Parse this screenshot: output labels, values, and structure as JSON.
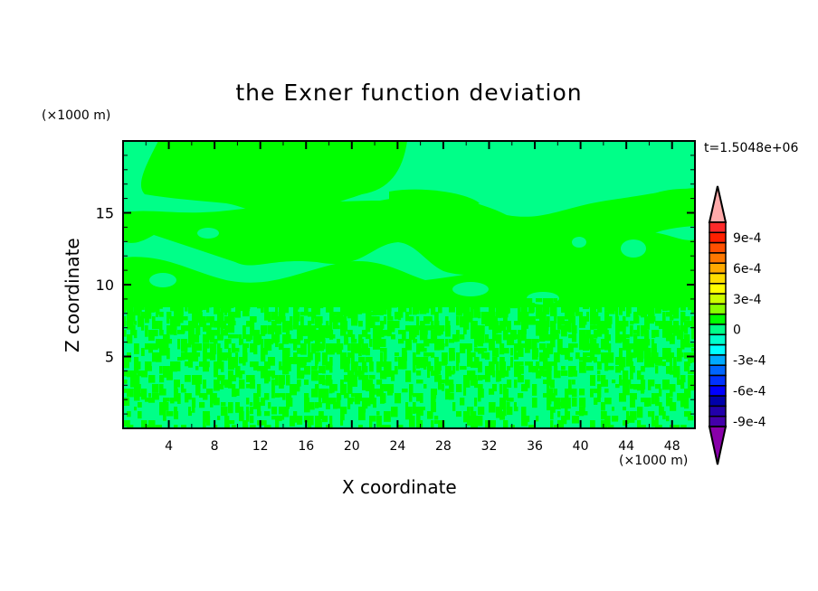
{
  "chart_data": {
    "type": "heatmap",
    "title": "the Exner function deviation",
    "xlabel": "X coordinate",
    "ylabel": "Z coordinate",
    "x_unit": "(×1000 m)",
    "y_unit": "(×1000 m)",
    "annotation": "t=1.5048e+06",
    "xlim": [
      0,
      50
    ],
    "ylim": [
      0,
      20
    ],
    "x_ticks": [
      4,
      8,
      12,
      16,
      20,
      24,
      28,
      32,
      36,
      40,
      44,
      48
    ],
    "y_ticks": [
      5,
      10,
      15
    ],
    "colorbar": {
      "tick_labels": [
        "9e-4",
        "6e-4",
        "3e-4",
        "0",
        "-3e-4",
        "-6e-4",
        "-9e-4"
      ],
      "tick_values": [
        0.0009,
        0.0006,
        0.0003,
        0,
        -0.0003,
        -0.0006,
        -0.0009
      ],
      "over_color": "#ffaaaa",
      "under_color": "#8800aa",
      "colors_top_to_bottom": [
        "#ff2a2a",
        "#ff2000",
        "#ff5000",
        "#ff7800",
        "#ffaa00",
        "#ffdd00",
        "#ffff00",
        "#ccff00",
        "#88ff00",
        "#00ff00",
        "#00ff88",
        "#00ffcc",
        "#00ffff",
        "#00aaff",
        "#0066ff",
        "#0033ff",
        "#0000ff",
        "#0000aa",
        "#2200aa",
        "#4400aa"
      ]
    },
    "field_description_values": {
      "dominant_levels": [
        "0",
        "-3e-4 to 0"
      ],
      "level_colors": [
        "#00ff00",
        "#00ff88"
      ]
    }
  }
}
